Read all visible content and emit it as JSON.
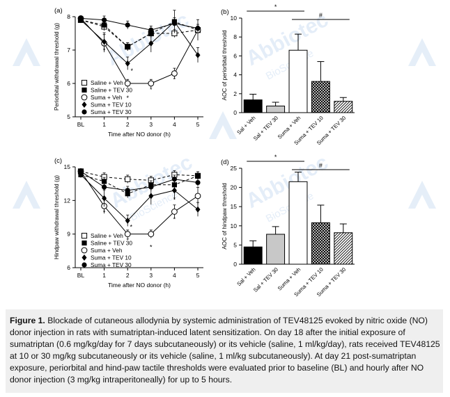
{
  "watermark": {
    "brand": "Abbiotec",
    "tagline": "BioScience"
  },
  "caption": {
    "label": "Figure 1.",
    "text": "Blockade of cutaneous allodynia by systemic administration of TEV48125 evoked by nitric oxide (NO) donor injection in rats with sumatriptan-induced latent sensitization. On day 18 after the initial exposure of sumatriptan (0.6 mg/kg/day for 7 days subcutaneously) or its vehicle (saline, 1 ml/kg/day), rats received TEV48125 at 10 or 30 mg/kg subcutaneously or its vehicle (saline, 1 ml/kg subcutaneously). At day 21 post-sumatriptan exposure, periorbital and hind-paw tactile thresholds were evaluated prior to baseline (BL) and hourly after NO donor injection (3 mg/kg intraperitoneally) for up to 5 hours."
  },
  "chart_data": [
    {
      "panel": "(a)",
      "type": "line",
      "xlabel": "Time after NO donor (h)",
      "ylabel": "Periorbital withdrawal threshold (g)",
      "x": [
        "BL",
        "1",
        "2",
        "3",
        "4",
        "5"
      ],
      "ylim": [
        5,
        8
      ],
      "yticks": [
        5,
        6,
        7,
        8
      ],
      "series": [
        {
          "name": "Saline + Veh",
          "marker": "open-square",
          "dash": "4,3",
          "values": [
            7.9,
            7.7,
            7.1,
            7.5,
            7.5,
            7.6
          ]
        },
        {
          "name": "Saline + TEV 30",
          "marker": "filled-square",
          "dash": "4,3",
          "values": [
            7.9,
            7.75,
            7.1,
            7.5,
            7.85,
            7.6
          ]
        },
        {
          "name": "Suma + Veh",
          "marker": "open-circle",
          "dash": "",
          "values": [
            7.95,
            7.2,
            6.0,
            6.0,
            6.3,
            7.6
          ]
        },
        {
          "name": "Suma + TEV 10",
          "marker": "filled-diamond",
          "dash": "",
          "values": [
            7.9,
            7.25,
            6.6,
            7.2,
            7.85,
            6.85
          ]
        },
        {
          "name": "Suma + TEV 30",
          "marker": "filled-circle",
          "dash": "",
          "values": [
            7.95,
            7.9,
            7.75,
            7.6,
            7.8,
            7.65
          ]
        }
      ],
      "annotations": [
        "*",
        "*",
        "*",
        "*",
        "*"
      ]
    },
    {
      "panel": "(b)",
      "type": "bar",
      "ylabel": "AOC of periorbital threshold",
      "categories": [
        "Sal + Veh",
        "Sal + TEV 30",
        "Suma + Veh",
        "Suma + TEV 10",
        "Suma + TEV 30"
      ],
      "values": [
        1.35,
        0.7,
        6.6,
        3.3,
        1.2
      ],
      "errors": [
        0.6,
        0.4,
        1.7,
        2.1,
        0.4
      ],
      "ylim": [
        0,
        10
      ],
      "yticks": [
        0,
        2,
        4,
        6,
        8,
        10
      ],
      "fills": [
        "black",
        "lightgray",
        "white",
        "crosshatch",
        "diagonal"
      ],
      "significance": [
        {
          "from": 0,
          "to": 2,
          "symbol": "*"
        },
        {
          "from": 2,
          "to": 4,
          "symbol": "#"
        }
      ]
    },
    {
      "panel": "(c)",
      "type": "line",
      "xlabel": "Time after NO donor (h)",
      "ylabel": "Hindpaw withdrawal threshold (g)",
      "x": [
        "BL",
        "1",
        "2",
        "3",
        "4",
        "5"
      ],
      "ylim": [
        6,
        15
      ],
      "yticks": [
        6,
        9,
        12,
        15
      ],
      "series": [
        {
          "name": "Saline + Veh",
          "marker": "open-square",
          "dash": "4,3",
          "values": [
            14.6,
            14.1,
            13.9,
            13.8,
            14.3,
            14.2
          ]
        },
        {
          "name": "Saline + TEV 30",
          "marker": "filled-square",
          "dash": "4,3",
          "values": [
            14.3,
            13.7,
            12.6,
            13.4,
            13.4,
            14.2
          ]
        },
        {
          "name": "Suma + Veh",
          "marker": "open-circle",
          "dash": "",
          "values": [
            14.6,
            11.5,
            9.0,
            9.0,
            11.0,
            12.4
          ]
        },
        {
          "name": "Suma + TEV 10",
          "marker": "filled-diamond",
          "dash": "",
          "values": [
            14.3,
            12.2,
            10.2,
            12.4,
            12.9,
            11.2
          ]
        },
        {
          "name": "Suma + TEV 30",
          "marker": "filled-circle",
          "dash": "",
          "values": [
            14.6,
            13.2,
            12.9,
            13.2,
            13.9,
            13.6
          ]
        }
      ],
      "annotations": [
        "*",
        "*",
        "*",
        "*",
        "*",
        "*"
      ]
    },
    {
      "panel": "(d)",
      "type": "bar",
      "ylabel": "AOC of hindpaw threshold",
      "categories": [
        "Sal + Veh",
        "Sal + TEV 30",
        "Suma + Veh",
        "Suma + TEV 10",
        "Suma + TEV 30"
      ],
      "values": [
        4.5,
        7.8,
        21.5,
        10.8,
        8.2
      ],
      "errors": [
        1.6,
        2.0,
        2.5,
        4.6,
        2.3
      ],
      "ylim": [
        0,
        25
      ],
      "yticks": [
        0,
        5,
        10,
        15,
        20,
        25
      ],
      "fills": [
        "black",
        "lightgray",
        "white",
        "crosshatch",
        "diagonal"
      ],
      "significance": [
        {
          "from": 0,
          "to": 2,
          "symbol": "*"
        },
        {
          "from": 2,
          "to": 4,
          "symbol": "#"
        }
      ]
    }
  ]
}
